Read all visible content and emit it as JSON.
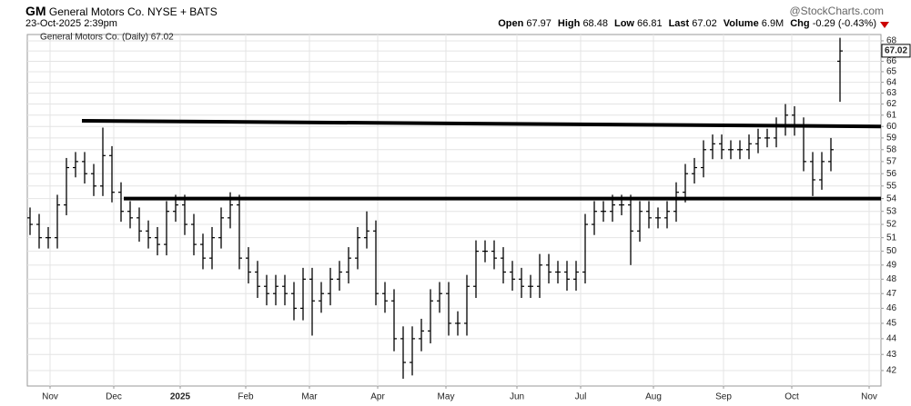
{
  "chart_data": {
    "type": "ohlc",
    "symbol": "GM",
    "exchange": "General Motors Co. NYSE + BATS",
    "timestamp": "23-Oct-2025 2:39pm",
    "brand": "@StockCharts.com",
    "quote": [
      {
        "label": "Open",
        "value": "67.97"
      },
      {
        "label": "High",
        "value": "68.48"
      },
      {
        "label": "Low",
        "value": "66.81"
      },
      {
        "label": "Last",
        "value": "67.02"
      },
      {
        "label": "Volume",
        "value": "6.9M"
      },
      {
        "label": "Chg",
        "value": "-0.29 (-0.43%)"
      }
    ],
    "legend": "General Motors Co. (Daily) 67.02",
    "last": 67.02,
    "color": "#000000",
    "log_scale": true,
    "grid": true,
    "xlim": [
      -0.3,
      93.5
    ],
    "ylim": [
      41.06,
      68.63
    ],
    "yticks": [
      42,
      43,
      44,
      45,
      46,
      47,
      48,
      49,
      50,
      51,
      52,
      53,
      54,
      55,
      56,
      57,
      58,
      59,
      60,
      61,
      62,
      63,
      64,
      65,
      66,
      67,
      68
    ],
    "xticks": [
      {
        "value": 2.2,
        "label": "Nov"
      },
      {
        "value": 9.2,
        "label": "Dec"
      },
      {
        "value": 16.5,
        "label": "2025"
      },
      {
        "value": 23.7,
        "label": "Feb"
      },
      {
        "value": 30.7,
        "label": "Mar"
      },
      {
        "value": 38.2,
        "label": "Apr"
      },
      {
        "value": 45.7,
        "label": "May"
      },
      {
        "value": 53.5,
        "label": "Jun"
      },
      {
        "value": 60.5,
        "label": "Jul"
      },
      {
        "value": 68.5,
        "label": "Aug"
      },
      {
        "value": 76.2,
        "label": "Sep"
      },
      {
        "value": 83.7,
        "label": "Oct"
      },
      {
        "value": 92.2,
        "label": "Nov"
      }
    ],
    "open": [
      52.5,
      52,
      51,
      51,
      53.5,
      56.5,
      57,
      56,
      55,
      57.5,
      54.5,
      53,
      52.5,
      51.5,
      51,
      50.5,
      53,
      53.5,
      52,
      50.5,
      49.5,
      51,
      52.5,
      53.5,
      49.5,
      48.5,
      47.5,
      47,
      47.5,
      47,
      46,
      48,
      46.5,
      47,
      48,
      48.5,
      49.5,
      51,
      51.5,
      47,
      46.5,
      44,
      42.5,
      44,
      44.5,
      46.5,
      47,
      45,
      45,
      47.5,
      50,
      50,
      49.5,
      48.5,
      48,
      47.5,
      47.5,
      49,
      48.5,
      48.5,
      48,
      48.5,
      52,
      53,
      53,
      53.5,
      53.5,
      51.5,
      53,
      52.5,
      52.5,
      53,
      54.5,
      56,
      56.5,
      58,
      58.5,
      58,
      58,
      58,
      58.5,
      59,
      59,
      60,
      61,
      60,
      57,
      55.5,
      57,
      66
    ],
    "high": [
      53.3,
      52.8,
      51.8,
      54.3,
      57.3,
      57.8,
      57.8,
      56.8,
      59.9,
      58.3,
      55.3,
      53.8,
      53.3,
      52.3,
      51.8,
      53.8,
      54.3,
      54.3,
      52.8,
      51.3,
      51.8,
      53.3,
      54.5,
      54.3,
      50.3,
      49.3,
      48.3,
      48.3,
      48.3,
      47.8,
      48.8,
      48.8,
      47.8,
      48.8,
      49.3,
      50.3,
      51.8,
      53,
      52.3,
      47.8,
      47.3,
      44.8,
      44.8,
      45.3,
      47.3,
      47.8,
      47.8,
      45.8,
      48.3,
      50.8,
      50.8,
      50.8,
      50.3,
      49.3,
      48.8,
      48.3,
      49.8,
      49.8,
      49.3,
      49.3,
      49.3,
      52.8,
      53.8,
      53.8,
      54.3,
      54.3,
      54.3,
      53.8,
      53.8,
      53.3,
      53.8,
      55.3,
      56.8,
      57.3,
      58.8,
      59.3,
      59.3,
      58.8,
      58.8,
      59.3,
      59.8,
      59.8,
      60.8,
      62,
      61.8,
      60.8,
      57.8,
      57.8,
      59,
      68.3
    ],
    "low": [
      51.2,
      50.2,
      50.2,
      50.2,
      52.7,
      55.7,
      55.2,
      54.2,
      54.2,
      53.7,
      52.2,
      51.7,
      50.7,
      50.2,
      49.7,
      49.7,
      52.2,
      51.2,
      49.7,
      48.7,
      48.7,
      50.2,
      51.7,
      48.7,
      47.7,
      46.7,
      46.2,
      46.2,
      46.2,
      45.2,
      45.2,
      44.2,
      45.7,
      46.2,
      47.2,
      47.7,
      48.7,
      50.2,
      46.2,
      45.7,
      43.2,
      41.5,
      41.7,
      43.2,
      43.7,
      45.7,
      44.2,
      44.2,
      44.2,
      46.7,
      49.2,
      48.7,
      47.7,
      47.2,
      46.7,
      46.7,
      46.7,
      47.7,
      47.7,
      47.2,
      47.2,
      47.7,
      51.2,
      52.2,
      52.2,
      52.7,
      49,
      50.7,
      51.7,
      51.7,
      51.7,
      52.2,
      53.7,
      55.2,
      55.7,
      57.2,
      57.2,
      57.2,
      57.2,
      57.2,
      57.7,
      58.2,
      58.2,
      59.2,
      59.2,
      56.2,
      54.2,
      54.7,
      56.2,
      62.2
    ],
    "close": [
      52,
      51,
      51,
      53.5,
      56.5,
      57,
      56,
      55,
      57.5,
      54.5,
      53,
      52.5,
      51.5,
      51,
      50.5,
      53,
      53.5,
      52,
      50.5,
      49.5,
      51,
      52.5,
      53.5,
      49.5,
      48.5,
      47.5,
      47,
      47.5,
      47,
      46,
      48,
      46.5,
      47,
      48,
      48.5,
      49.5,
      51,
      51.5,
      47,
      46.5,
      44,
      42.5,
      44,
      44.5,
      46.5,
      47,
      45,
      45,
      47.5,
      50,
      50,
      49.5,
      48.5,
      48,
      47.5,
      47.5,
      49,
      48.5,
      48.5,
      48,
      48.5,
      52,
      53,
      53,
      53.5,
      53.5,
      51.5,
      53,
      52.5,
      52.5,
      53,
      54.5,
      56,
      56.5,
      58,
      58.5,
      58,
      58,
      58,
      58.5,
      59,
      59,
      60,
      61,
      60,
      57,
      55.5,
      57,
      58,
      67
    ],
    "trendlines": [
      {
        "x": [
          5.7,
          93.5
        ],
        "y": [
          60.5,
          60.0
        ]
      },
      {
        "x": [
          10.3,
          93.5
        ],
        "y": [
          54,
          54
        ]
      }
    ]
  }
}
